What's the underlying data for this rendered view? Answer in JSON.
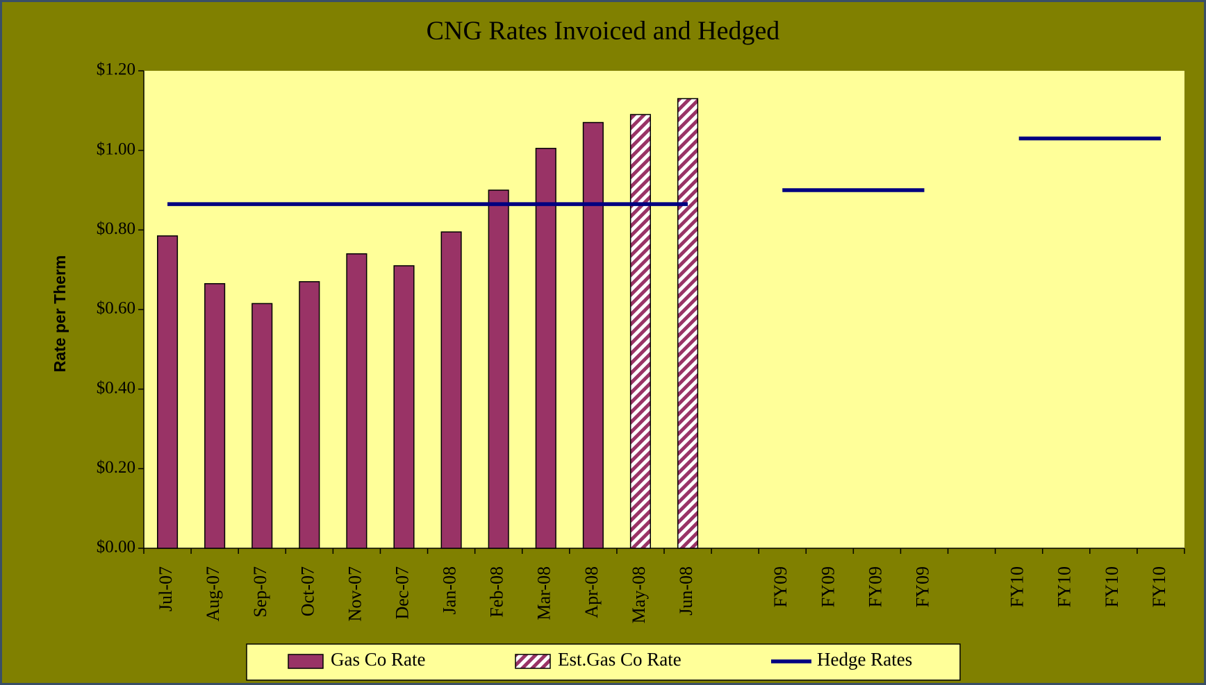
{
  "chart_data": {
    "type": "bar",
    "title": "CNG Rates Invoiced and Hedged",
    "y_label": "Rate per Therm",
    "categories": [
      "Jul-07",
      "Aug-07",
      "Sep-07",
      "Oct-07",
      "Nov-07",
      "Dec-07",
      "Jan-08",
      "Feb-08",
      "Mar-08",
      "Apr-08",
      "May-08",
      "Jun-08",
      null,
      "FY09",
      "FY09",
      "FY09",
      "FY09",
      null,
      "FY10",
      "FY10",
      "FY10",
      "FY10"
    ],
    "series": [
      {
        "name": "Gas Co Rate",
        "type": "bar",
        "color": "#993366",
        "values": [
          0.785,
          0.665,
          0.615,
          0.67,
          0.74,
          0.71,
          0.795,
          0.9,
          1.005,
          1.07,
          null,
          null,
          null,
          null,
          null,
          null,
          null,
          null,
          null,
          null,
          null,
          null
        ]
      },
      {
        "name": "Est.Gas Co Rate",
        "type": "bar",
        "color": "#993366",
        "pattern": "hatch",
        "values": [
          null,
          null,
          null,
          null,
          null,
          null,
          null,
          null,
          null,
          null,
          1.09,
          1.13,
          null,
          null,
          null,
          null,
          null,
          null,
          null,
          null,
          null,
          null
        ]
      },
      {
        "name": "Hedge Rates",
        "type": "line",
        "color": "#000080",
        "values": [
          0.865,
          0.865,
          0.865,
          0.865,
          0.865,
          0.865,
          0.865,
          0.865,
          0.865,
          0.865,
          0.865,
          0.865,
          null,
          0.9,
          0.9,
          0.9,
          0.9,
          null,
          1.03,
          1.03,
          1.03,
          1.03
        ]
      }
    ],
    "ylim": [
      0,
      1.2
    ],
    "yticks": [
      {
        "value": 0,
        "label": "$0.00"
      },
      {
        "value": 0.2,
        "label": "$0.20"
      },
      {
        "value": 0.4,
        "label": "$0.40"
      },
      {
        "value": 0.6,
        "label": "$0.60"
      },
      {
        "value": 0.8,
        "label": "$0.80"
      },
      {
        "value": 1.0,
        "label": "$1.00"
      },
      {
        "value": 1.2,
        "label": "$1.20"
      }
    ],
    "legend": "bottom"
  }
}
